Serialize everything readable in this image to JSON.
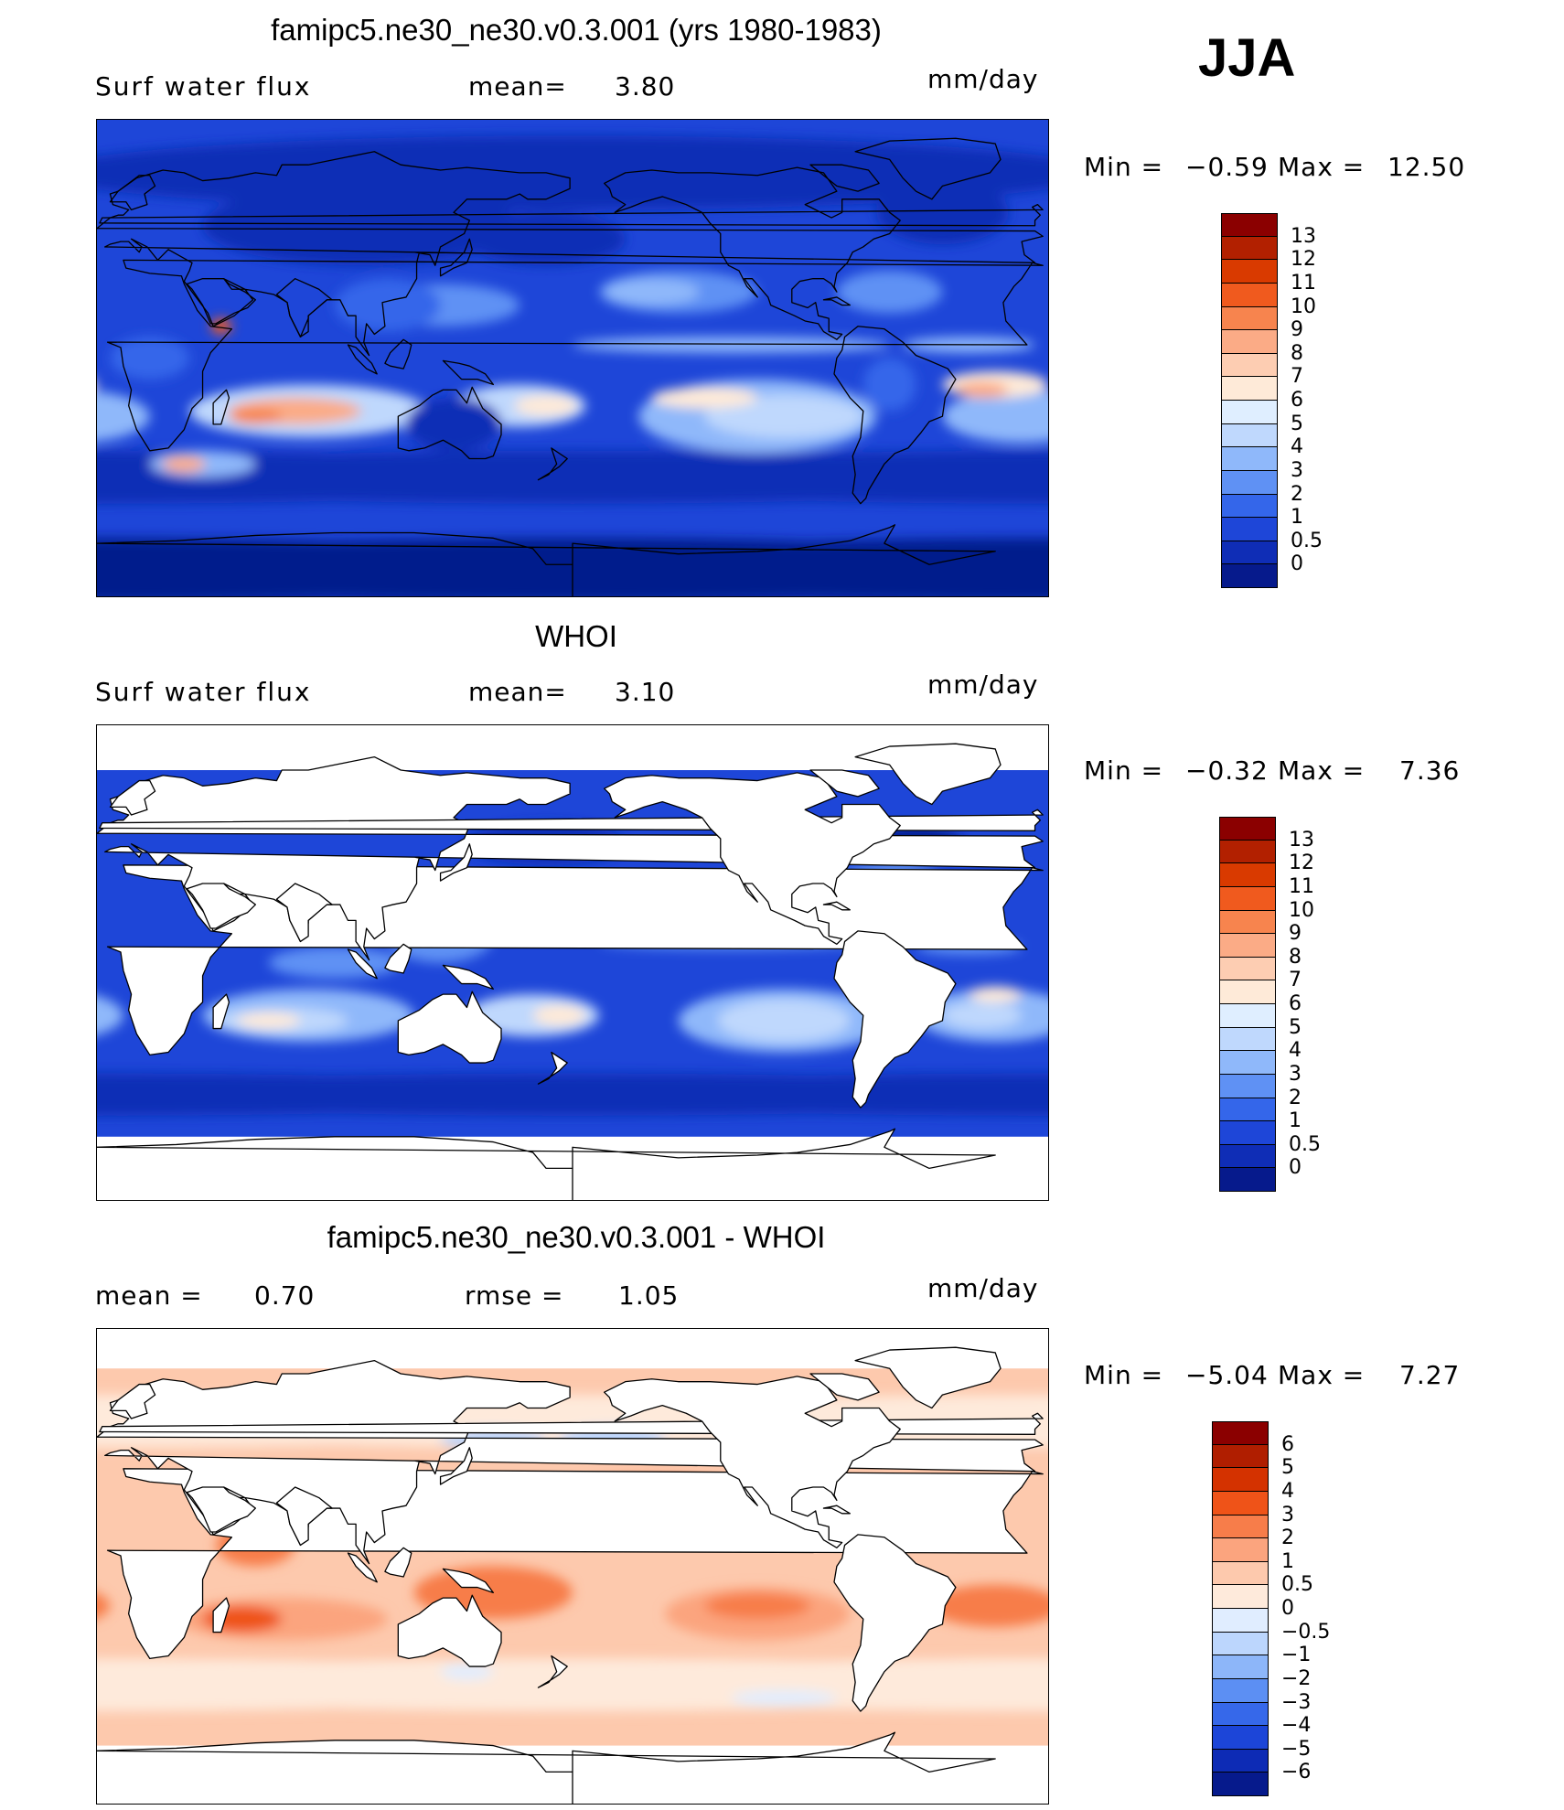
{
  "season": "JJA",
  "panels": [
    {
      "title": "famipc5.ne30_ne30.v0.3.001 (yrs 1980-1983)",
      "left_label": "Surf water flux",
      "mid_label": "mean=",
      "mid_value": "3.80",
      "units": "mm/day",
      "min_label": "Min =",
      "min_value": "−0.59",
      "max_label": "Max =",
      "max_value": "12.50",
      "field": "model"
    },
    {
      "title": "WHOI",
      "left_label": "Surf water flux",
      "mid_label": "mean=",
      "mid_value": "3.10",
      "units": "mm/day",
      "min_label": "Min =",
      "min_value": "−0.32",
      "max_label": "Max =",
      "max_value": "7.36",
      "field": "obs"
    },
    {
      "title": "famipc5.ne30_ne30.v0.3.001 - WHOI",
      "left_label": "mean =",
      "left_value": "0.70",
      "mid_label": "rmse =",
      "mid_value": "1.05",
      "units": "mm/day",
      "min_label": "Min =",
      "min_value": "−5.04",
      "max_label": "Max =",
      "max_value": "7.27",
      "field": "diff"
    }
  ],
  "colorbars": {
    "abs": {
      "labels": [
        "13",
        "12",
        "11",
        "10",
        "9",
        "8",
        "7",
        "6",
        "5",
        "4",
        "3",
        "2",
        "1",
        "0.5",
        "0"
      ],
      "colors": [
        "#8b0000",
        "#b22000",
        "#d93a00",
        "#f05a1e",
        "#f7844e",
        "#fbab86",
        "#fdcdb2",
        "#feead8",
        "#dfeeff",
        "#bfd8fd",
        "#8fb8fa",
        "#5f91f4",
        "#3466ea",
        "#1e46d8",
        "#0f2db6",
        "#061a8c"
      ]
    },
    "diff": {
      "labels": [
        "6",
        "5",
        "4",
        "3",
        "2",
        "1",
        "0.5",
        "0",
        "−0.5",
        "−1",
        "−2",
        "−3",
        "−4",
        "−5",
        "−6"
      ],
      "colors": [
        "#8b0000",
        "#b01e00",
        "#d43200",
        "#ef5318",
        "#f77d4a",
        "#fba47e",
        "#fdc9ad",
        "#feeadb",
        "#e0edff",
        "#bcd6fd",
        "#8db6f9",
        "#5c8ff3",
        "#3668ea",
        "#1c45d8",
        "#0d2bb5",
        "#061a8c"
      ]
    }
  }
}
